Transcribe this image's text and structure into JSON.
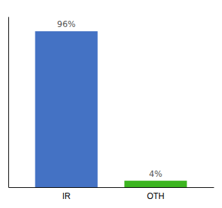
{
  "chart_data": {
    "type": "bar",
    "categories": [
      "IR",
      "OTH"
    ],
    "values": [
      96,
      4
    ],
    "value_labels": [
      "96%",
      "4%"
    ],
    "colors": [
      "#4472c4",
      "#3cb520"
    ],
    "ylim": [
      0,
      105
    ],
    "data_labels": true,
    "tick_labels": "x"
  }
}
